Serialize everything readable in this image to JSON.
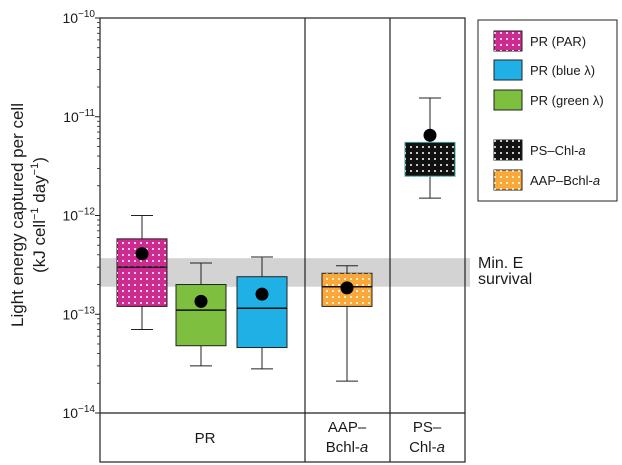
{
  "chart_data": {
    "type": "box",
    "title": "",
    "xlabel": "",
    "ylabel_line1": "Light energy captured per cell",
    "ylabel_line2_parts": [
      "(kJ cell",
      "−1",
      " day",
      "−1",
      ")"
    ],
    "yscale": "log",
    "ylim": [
      1e-14,
      1e-10
    ],
    "yticks": [
      {
        "value": 1e-14,
        "base": "10",
        "exp": "−14"
      },
      {
        "value": 1e-13,
        "base": "10",
        "exp": "−13"
      },
      {
        "value": 1e-12,
        "base": "10",
        "exp": "−12"
      },
      {
        "value": 1e-11,
        "base": "10",
        "exp": "−11"
      },
      {
        "value": 1e-10,
        "base": "10",
        "exp": "−10"
      }
    ],
    "threshold_band": {
      "label_line1": "Min. E",
      "label_line2": "survival",
      "low": 1.9e-13,
      "high": 3.7e-13,
      "color": "#d3d3d3"
    },
    "groups": [
      {
        "label_lines": [
          "PR"
        ],
        "members": [
          "PR (PAR)",
          "PR (blue λ)",
          "PR (green λ)"
        ]
      },
      {
        "label_lines": [
          "AAP–",
          "Bchl-a"
        ],
        "members": [
          "AAP–Bchl-a"
        ]
      },
      {
        "label_lines": [
          "PS–",
          "Chl-a"
        ],
        "members": [
          "PS–Chl-a"
        ]
      }
    ],
    "series": [
      {
        "name": "PR (PAR)",
        "color": "#cc2b8f",
        "whisker_low": 7e-14,
        "q1": 1.2e-13,
        "median": 3e-13,
        "q3": 5.8e-13,
        "whisker_high": 1e-12,
        "mean": 4.1e-13
      },
      {
        "name": "PR (green λ)",
        "color": "#7ebf3f",
        "whisker_low": 3e-14,
        "q1": 4.8e-14,
        "median": 1.1e-13,
        "q3": 2e-13,
        "whisker_high": 3.3e-13,
        "mean": 1.35e-13
      },
      {
        "name": "PR (blue λ)",
        "color": "#1fb1e6",
        "whisker_low": 2.8e-14,
        "q1": 4.6e-14,
        "median": 1.15e-13,
        "q3": 2.4e-13,
        "whisker_high": 3.8e-13,
        "mean": 1.6e-13
      },
      {
        "name": "AAP–Bchl-a",
        "color": "#f8a93a",
        "whisker_low": 2.1e-14,
        "q1": 1.2e-13,
        "median": 1.9e-13,
        "q3": 2.6e-13,
        "whisker_high": 3.1e-13,
        "mean": 1.85e-13
      },
      {
        "name": "PS–Chl-a",
        "color": "#111111",
        "whisker_low": 1.5e-12,
        "q1": 2.5e-12,
        "median": 4e-12,
        "q3": 5.5e-12,
        "whisker_high": 1.55e-11,
        "mean": 6.5e-12
      }
    ],
    "legend": {
      "position": "right",
      "items": [
        {
          "series": "PR (PAR)",
          "parts": [
            {
              "t": "PR (PAR)",
              "i": false
            }
          ]
        },
        {
          "series": "PR (blue λ)",
          "parts": [
            {
              "t": "PR (blue λ)",
              "i": false
            }
          ]
        },
        {
          "series": "PR (green λ)",
          "parts": [
            {
              "t": "PR (green λ)",
              "i": false
            }
          ]
        },
        {
          "series": "PS–Chl-a",
          "parts": [
            {
              "t": "PS–Chl-",
              "i": false
            },
            {
              "t": "a",
              "i": true
            }
          ]
        },
        {
          "series": "AAP–Bchl-a",
          "parts": [
            {
              "t": "AAP–Bchl-",
              "i": false
            },
            {
              "t": "a",
              "i": true
            }
          ]
        }
      ]
    },
    "grid": false
  }
}
